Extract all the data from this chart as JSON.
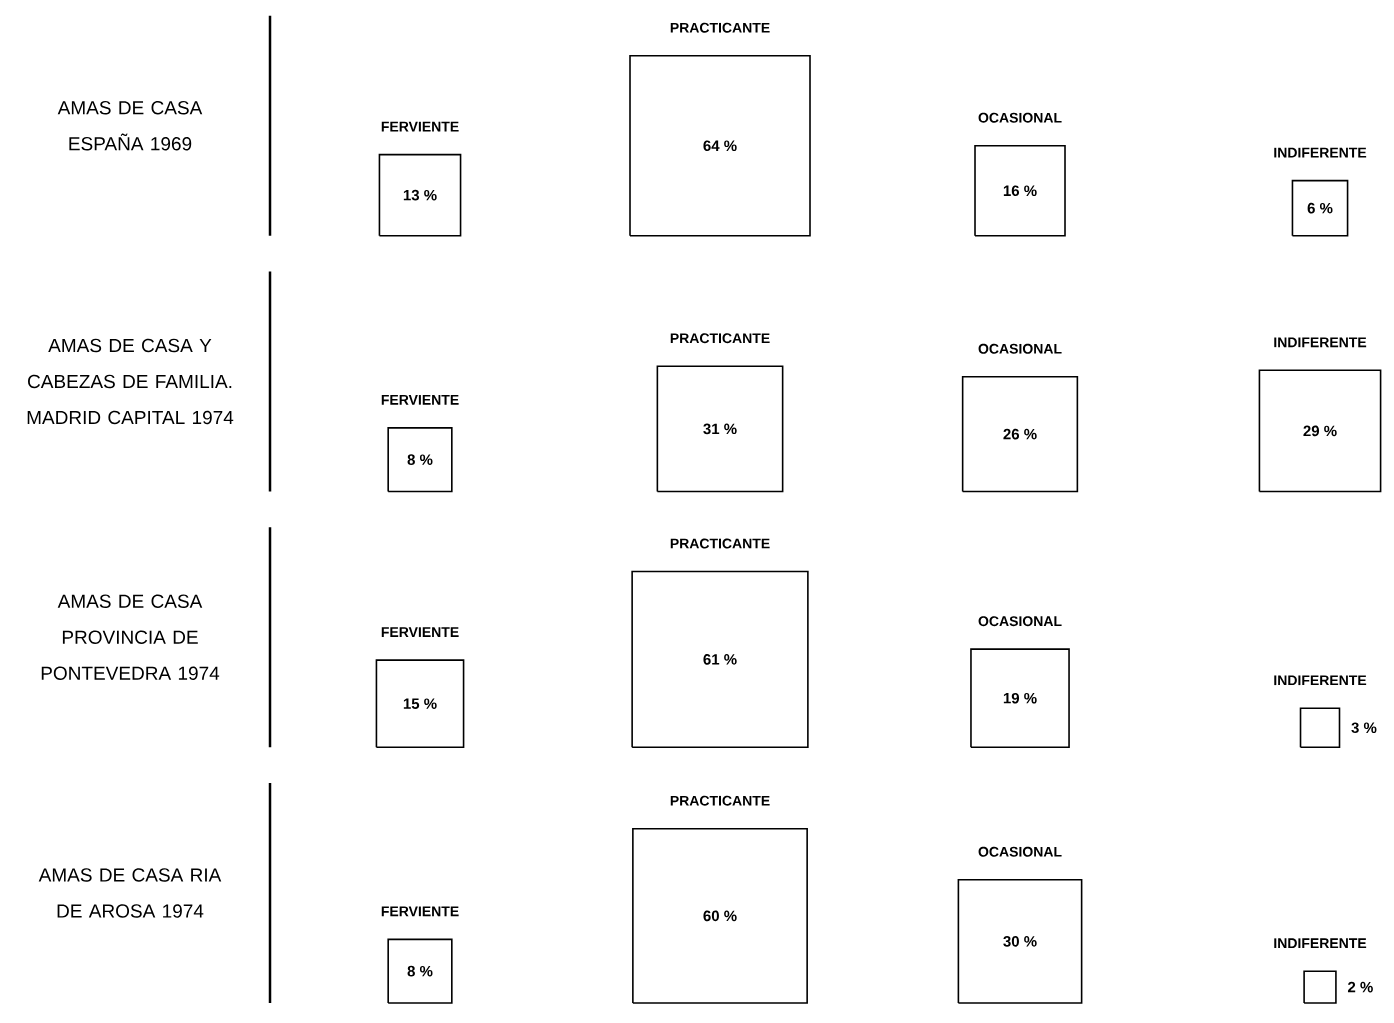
{
  "chart_data": [
    {
      "type": "other",
      "title": "AMAS DE CASA ESPAÑA 1969",
      "categories": [
        "FERVIENTE",
        "PRACTICANTE",
        "OCASIONAL",
        "INDIFERENTE"
      ],
      "values": [
        13,
        64,
        16,
        6
      ],
      "value_labels": [
        "13 %",
        "64 %",
        "16 %",
        "6 %"
      ]
    },
    {
      "type": "other",
      "title": "AMAS DE CASA Y CABEZAS DE FAMILIA. MADRID CAPITAL 1974",
      "categories": [
        "FERVIENTE",
        "PRACTICANTE",
        "OCASIONAL",
        "INDIFERENTE"
      ],
      "values": [
        8,
        31,
        26,
        29
      ],
      "value_labels": [
        "8 %",
        "31 %",
        "26 %",
        "29 %"
      ]
    },
    {
      "type": "other",
      "title": "AMAS DE CASA PROVINCIA DE PONTEVEDRA 1974",
      "categories": [
        "FERVIENTE",
        "PRACTICANTE",
        "OCASIONAL",
        "INDIFERENTE"
      ],
      "values": [
        15,
        61,
        19,
        3
      ],
      "value_labels": [
        "15 %",
        "61 %",
        "19 %",
        "3 %"
      ]
    },
    {
      "type": "other",
      "title": "AMAS DE CASA RIA DE AROSA 1974",
      "categories": [
        "FERVIENTE",
        "PRACTICANTE",
        "OCASIONAL",
        "INDIFERENTE"
      ],
      "values": [
        8,
        60,
        30,
        2
      ],
      "value_labels": [
        "8 %",
        "60 %",
        "30 %",
        "2 %"
      ]
    }
  ]
}
